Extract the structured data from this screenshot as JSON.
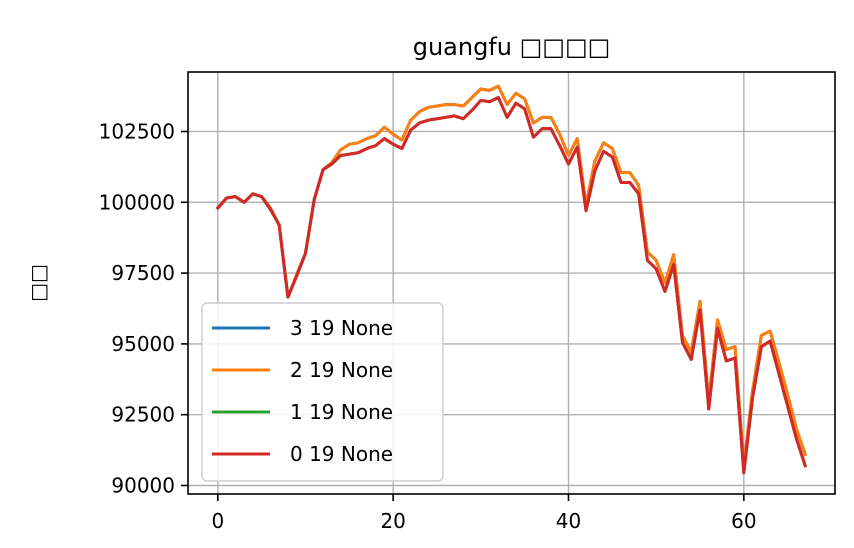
{
  "chart_data": {
    "type": "line",
    "title": "guangfu □□□□",
    "xlabel": "",
    "ylabel": "□□",
    "xlim": [
      -3.4,
      70.4
    ],
    "ylim": [
      89700,
      104600
    ],
    "xticks": [
      0,
      20,
      40,
      60
    ],
    "yticks": [
      90000,
      92500,
      95000,
      97500,
      100000,
      102500
    ],
    "ytick_labels": [
      "90000",
      "92500",
      "95000",
      "97500",
      "100000",
      "102500"
    ],
    "grid": true,
    "legend_position": "lower-left",
    "series": [
      {
        "name": "3 19 None",
        "color": "#1f77b4",
        "values": [
          99800,
          100150,
          100200,
          100000,
          100300,
          100200,
          99800,
          99200,
          96650,
          97450,
          98200,
          100100,
          101150,
          101400,
          101850,
          102050,
          102100,
          102250,
          102350,
          102650,
          102400,
          102200,
          102900,
          103200,
          103350,
          103400,
          103450,
          103450,
          103400,
          103700,
          104000,
          103950,
          104100,
          103450,
          103850,
          103650,
          102800,
          103000,
          103000,
          102400,
          101650,
          102250,
          99900,
          101450,
          102100,
          101900,
          101050,
          101050,
          100600,
          98250,
          97950,
          97150,
          98150,
          95300,
          94700,
          96500,
          93000,
          95850,
          94800,
          94900,
          90700,
          93350,
          95300,
          95450,
          94350,
          93200,
          92000,
          91100
        ]
      },
      {
        "name": "2 19 None",
        "color": "#ff7f0e",
        "values": [
          99800,
          100150,
          100200,
          100000,
          100300,
          100200,
          99800,
          99200,
          96650,
          97450,
          98200,
          100100,
          101150,
          101400,
          101850,
          102050,
          102100,
          102250,
          102350,
          102650,
          102400,
          102200,
          102900,
          103200,
          103350,
          103400,
          103450,
          103450,
          103400,
          103700,
          104000,
          103950,
          104100,
          103450,
          103850,
          103650,
          102800,
          103000,
          103000,
          102400,
          101650,
          102250,
          99900,
          101450,
          102100,
          101900,
          101050,
          101050,
          100600,
          98250,
          97950,
          97150,
          98150,
          95300,
          94700,
          96500,
          93000,
          95850,
          94800,
          94900,
          90700,
          93350,
          95300,
          95450,
          94350,
          93200,
          92000,
          91100
        ]
      },
      {
        "name": "1 19 None",
        "color": "#2ca02c",
        "values": [
          99800,
          100150,
          100200,
          100000,
          100300,
          100200,
          99750,
          99200,
          96650,
          97400,
          98200,
          100100,
          101150,
          101350,
          101650,
          101700,
          101750,
          101900,
          102000,
          102250,
          102050,
          101900,
          102550,
          102800,
          102900,
          102950,
          103000,
          103050,
          102950,
          103250,
          103600,
          103550,
          103700,
          103000,
          103500,
          103300,
          102300,
          102600,
          102600,
          102000,
          101350,
          101950,
          99700,
          101100,
          101800,
          101600,
          100700,
          100700,
          100300,
          97950,
          97650,
          96850,
          97800,
          95050,
          94450,
          96200,
          92700,
          95550,
          94400,
          94500,
          90450,
          93100,
          94900,
          95100,
          93950,
          92800,
          91650,
          90700
        ]
      },
      {
        "name": "0 19 None",
        "color": "#d62728",
        "values": [
          99800,
          100150,
          100200,
          100000,
          100300,
          100200,
          99750,
          99200,
          96650,
          97400,
          98200,
          100100,
          101150,
          101350,
          101650,
          101700,
          101750,
          101900,
          102000,
          102250,
          102050,
          101900,
          102550,
          102800,
          102900,
          102950,
          103000,
          103050,
          102950,
          103250,
          103600,
          103550,
          103700,
          103000,
          103500,
          103300,
          102300,
          102600,
          102600,
          102000,
          101350,
          101950,
          99700,
          101100,
          101800,
          101600,
          100700,
          100700,
          100300,
          97950,
          97650,
          96850,
          97800,
          95050,
          94450,
          96200,
          92700,
          95550,
          94400,
          94500,
          90450,
          93100,
          94900,
          95100,
          93950,
          92800,
          91650,
          90700
        ]
      }
    ]
  }
}
